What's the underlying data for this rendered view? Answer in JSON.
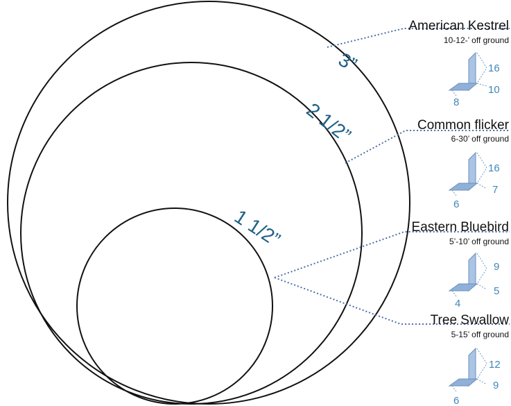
{
  "hole_sizes": [
    {
      "label": "3”"
    },
    {
      "label": "2 1/2”"
    },
    {
      "label": "1 1/2”"
    }
  ],
  "birds": [
    {
      "name": "American Kestrel",
      "height": "10-12-’ off ground",
      "depth": "16",
      "width": "10",
      "front": "8"
    },
    {
      "name": "Common flicker",
      "height": "6-30’ off ground",
      "depth": "16",
      "width": "7",
      "front": "6"
    },
    {
      "name": "Eastern Bluebird",
      "height": "5’-10’ off ground",
      "depth": "9",
      "width": "5",
      "front": "4"
    },
    {
      "name": "Tree Swallow",
      "height": "5-15’ off ground",
      "depth": "12",
      "width": "9",
      "front": "6"
    }
  ],
  "colors": {
    "circle_stroke": "#111111",
    "label_blue": "#1f5f86",
    "board_fill": "#a9c4e4",
    "board_dark": "#6e8fb7",
    "leader": "#4a6fa5"
  }
}
